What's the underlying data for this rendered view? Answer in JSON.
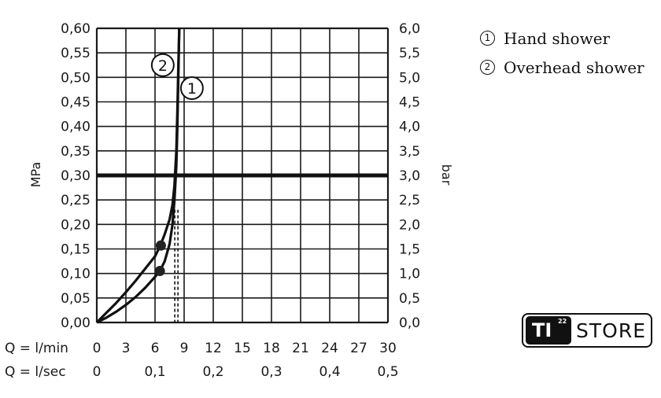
{
  "chart_data": {
    "type": "line",
    "ylabel_left": "MPa",
    "ylabel_right": "bar",
    "x_label_lmin": "Q = l/min",
    "x_label_lsec": "Q = l/sec",
    "x_ticks_lmin": [
      "0",
      "3",
      "6",
      "9",
      "12",
      "15",
      "18",
      "21",
      "24",
      "27",
      "30"
    ],
    "x_ticks_lsec": [
      "0",
      "0,1",
      "0,2",
      "0,3",
      "0,4",
      "0,5"
    ],
    "y_ticks_left": [
      "0,00",
      "0,05",
      "0,10",
      "0,15",
      "0,20",
      "0,25",
      "0,30",
      "0,35",
      "0,40",
      "0,45",
      "0,50",
      "0,55",
      "0,60"
    ],
    "y_ticks_right": [
      "0,0",
      "0,5",
      "1,0",
      "1,5",
      "2,0",
      "2,5",
      "3,0",
      "3,5",
      "4,0",
      "4,5",
      "5,0",
      "5,5",
      "6,0"
    ],
    "xlim": [
      0,
      30
    ],
    "ylim": [
      0,
      0.6
    ],
    "grid": true,
    "reference_line_y": 0.3,
    "reference_line_x": 8.2,
    "series": [
      {
        "name": "1",
        "x": [
          0,
          1,
          2,
          3,
          4,
          5,
          6,
          6.5,
          7,
          7.5,
          7.8,
          8.0,
          8.2,
          8.3,
          8.4,
          8.5
        ],
        "y": [
          0,
          0.01,
          0.022,
          0.036,
          0.052,
          0.071,
          0.093,
          0.105,
          0.125,
          0.16,
          0.2,
          0.25,
          0.32,
          0.4,
          0.5,
          0.6
        ],
        "marker": {
          "x": 6.5,
          "y": 0.105
        }
      },
      {
        "name": "2",
        "x": [
          0,
          1,
          2,
          3,
          4,
          5,
          6,
          6.5,
          7,
          7.5,
          7.8,
          8.0,
          8.2,
          8.3,
          8.4,
          8.5
        ],
        "y": [
          0,
          0.02,
          0.04,
          0.062,
          0.085,
          0.11,
          0.135,
          0.155,
          0.18,
          0.21,
          0.24,
          0.28,
          0.35,
          0.43,
          0.52,
          0.6
        ],
        "marker": {
          "x": 6.6,
          "y": 0.157
        }
      }
    ],
    "curve_labels": [
      {
        "text": "1",
        "x": 9.8,
        "y": 0.478
      },
      {
        "text": "2",
        "x": 6.8,
        "y": 0.525
      }
    ]
  },
  "legend": [
    {
      "num": "1",
      "label": "Hand shower"
    },
    {
      "num": "2",
      "label": "Overhead shower"
    }
  ],
  "logo": {
    "mark": "TI",
    "superscript": "22",
    "word": "STORE"
  }
}
